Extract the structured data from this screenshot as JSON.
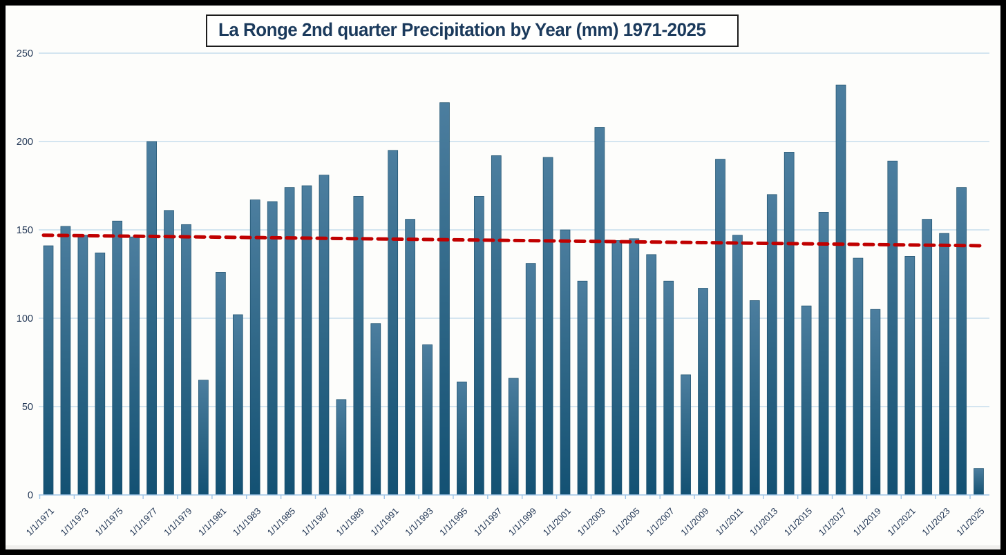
{
  "chart": {
    "title": "La Ronge 2nd quarter Precipitation by Year (mm) 1971-2025"
  },
  "chart_data": {
    "type": "bar",
    "title": "La Ronge 2nd quarter Precipitation by Year (mm) 1971-2025",
    "xlabel": "",
    "ylabel": "",
    "ylim": [
      0,
      250
    ],
    "y_ticks": [
      0,
      50,
      100,
      150,
      200,
      250
    ],
    "grid": "horizontal",
    "legend": "none",
    "years": [
      1971,
      1972,
      1973,
      1974,
      1975,
      1976,
      1977,
      1978,
      1979,
      1980,
      1981,
      1982,
      1983,
      1984,
      1985,
      1986,
      1987,
      1988,
      1989,
      1990,
      1991,
      1992,
      1993,
      1994,
      1995,
      1996,
      1997,
      1998,
      1999,
      2000,
      2001,
      2002,
      2003,
      2004,
      2005,
      2006,
      2007,
      2008,
      2009,
      2010,
      2011,
      2012,
      2013,
      2014,
      2015,
      2016,
      2017,
      2018,
      2019,
      2020,
      2021,
      2022,
      2023,
      2024,
      2025
    ],
    "values": [
      141,
      152,
      147,
      137,
      155,
      146,
      200,
      161,
      153,
      65,
      126,
      102,
      167,
      166,
      174,
      175,
      181,
      54,
      169,
      97,
      195,
      156,
      85,
      222,
      64,
      169,
      192,
      66,
      131,
      191,
      150,
      121,
      208,
      144,
      145,
      136,
      121,
      68,
      117,
      190,
      147,
      110,
      170,
      194,
      107,
      160,
      232,
      134,
      105,
      189,
      135,
      156,
      148,
      174,
      15
    ],
    "x_tick_labels": [
      "1/1/1971",
      "1/1/1973",
      "1/1/1975",
      "1/1/1977",
      "1/1/1979",
      "1/1/1981",
      "1/1/1983",
      "1/1/1985",
      "1/1/1987",
      "1/1/1989",
      "1/1/1991",
      "1/1/1993",
      "1/1/1995",
      "1/1/1997",
      "1/1/1999",
      "1/1/2001",
      "1/1/2003",
      "1/1/2005",
      "1/1/2007",
      "1/1/2009",
      "1/1/2011",
      "1/1/2013",
      "1/1/2015",
      "1/1/2017",
      "1/1/2019",
      "1/1/2021",
      "1/1/2023",
      "1/1/2025"
    ],
    "trendline": {
      "type": "linear",
      "style": "dashed",
      "color": "#c00000",
      "start_value": 147,
      "end_value": 141
    }
  },
  "colors": {
    "background": "#fdfdfb",
    "frame_border": "#000000",
    "grid_line": "#bdd7ea",
    "axis_line": "#9dc3e6",
    "bar_top": "#4c7e9f",
    "bar_mid": "#2f6787",
    "bar_bottom": "#135173",
    "bar_stroke": "#1d506d",
    "label_text": "#1e3352",
    "title_text": "#1b3a5c"
  }
}
